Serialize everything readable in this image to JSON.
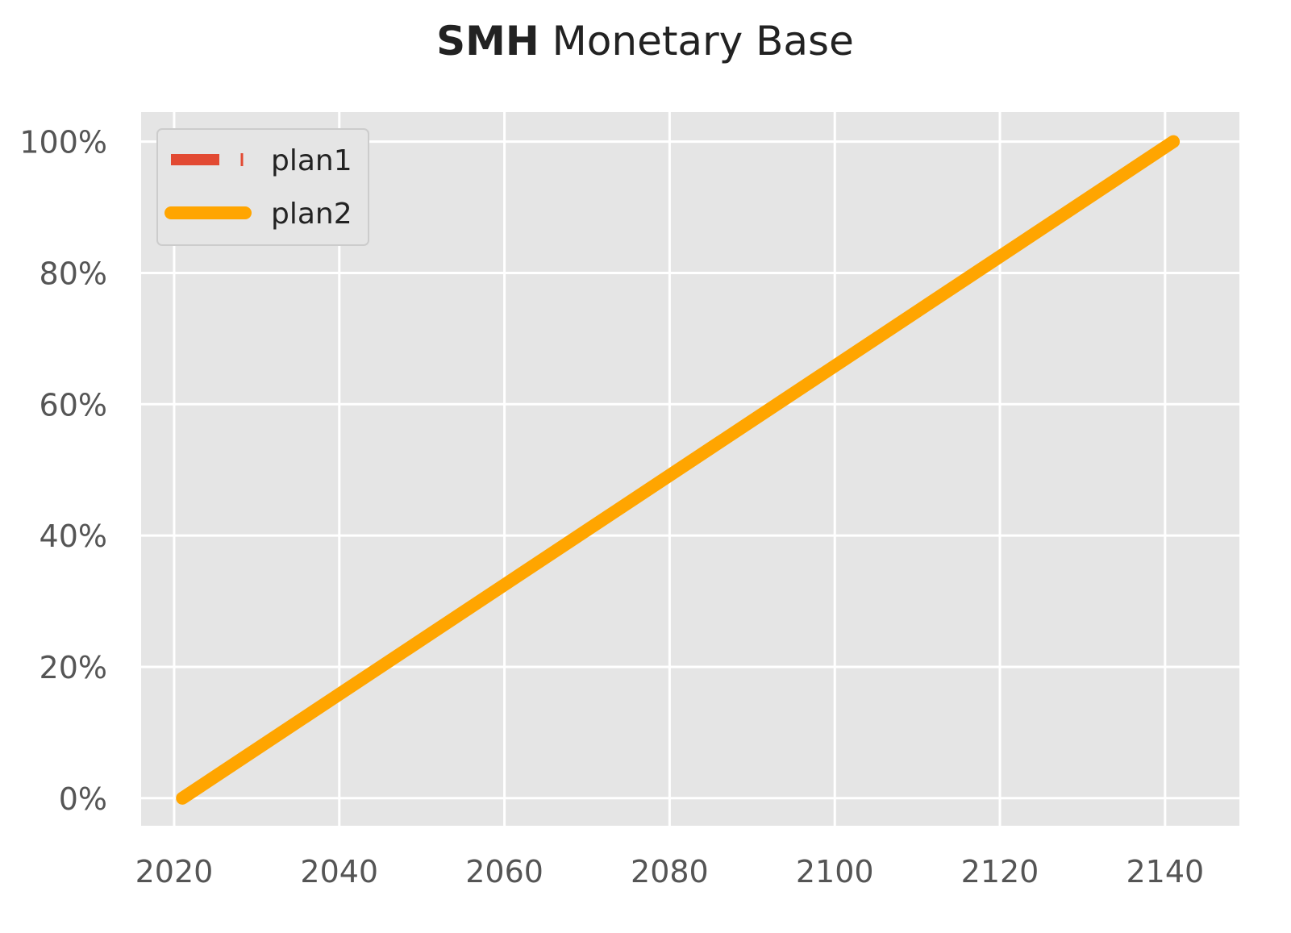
{
  "chart_data": {
    "type": "line",
    "title_bold": "SMH",
    "title_rest": " Monetary Base",
    "xlabel": "",
    "ylabel": "",
    "xlim": [
      2016,
      2149
    ],
    "ylim": [
      -4.2,
      104.5
    ],
    "x_ticks": [
      2020,
      2040,
      2060,
      2080,
      2100,
      2120,
      2140
    ],
    "x_tick_labels": [
      "2020",
      "2040",
      "2060",
      "2080",
      "2100",
      "2120",
      "2140"
    ],
    "y_ticks": [
      0,
      20,
      40,
      60,
      80,
      100
    ],
    "y_tick_labels": [
      "0%",
      "20%",
      "40%",
      "60%",
      "80%",
      "100%"
    ],
    "grid": true,
    "legend_position": "top-left",
    "series": [
      {
        "name": "plan1",
        "color": "#E24A33",
        "style": "dashed",
        "x": [
          2021,
          2141
        ],
        "y": [
          0,
          100
        ]
      },
      {
        "name": "plan2",
        "color": "#FFA500",
        "style": "solid",
        "x": [
          2021,
          2141
        ],
        "y": [
          0,
          100
        ]
      }
    ]
  }
}
